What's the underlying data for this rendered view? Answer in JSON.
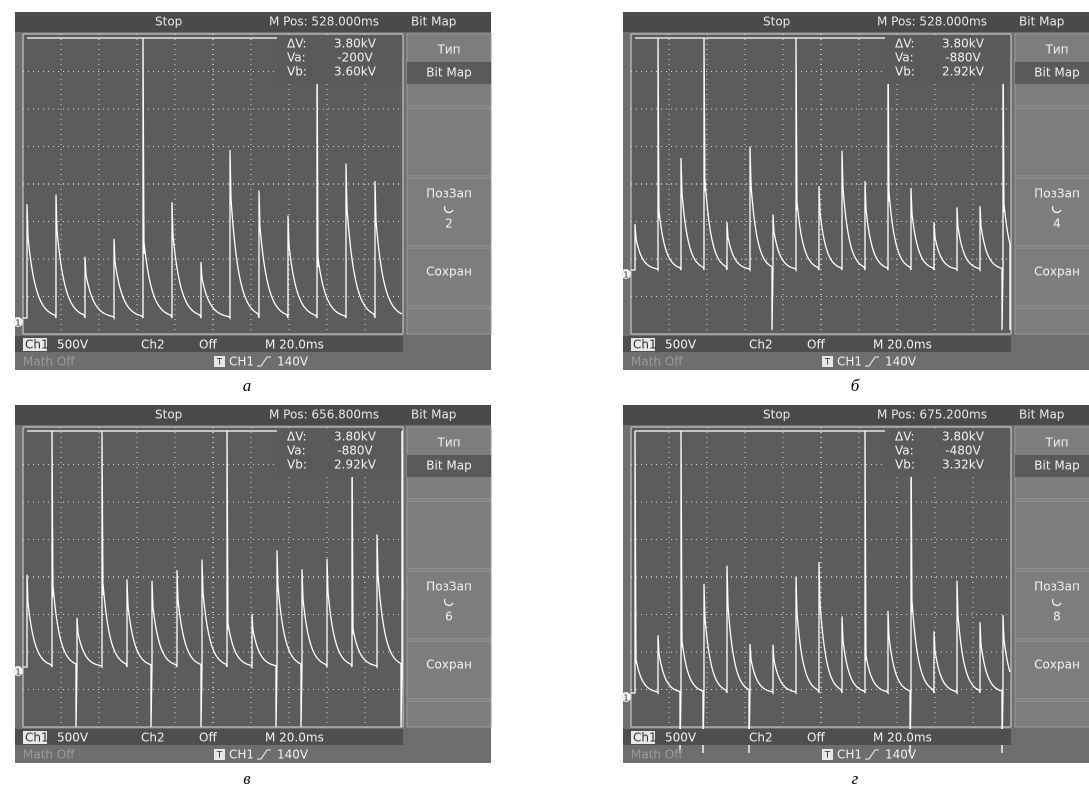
{
  "panels": [
    {
      "status": {
        "mode": "Stop",
        "position": "M Pos: 528.000ms",
        "format": "Bit Map"
      },
      "readout": [
        [
          "ΔV:",
          "3.80kV"
        ],
        [
          "Va:",
          "-200V"
        ],
        [
          "Vb:",
          "3.60kV"
        ]
      ],
      "menu": {
        "type_label": "Тип",
        "type_value": "Bit Map",
        "slot_label": "ПозЗап",
        "slot_value": "2",
        "save": "Сохран"
      },
      "channel_marker": "1",
      "footer": {
        "ch1": "Ch1",
        "ch1_scale": "500V",
        "ch2": "Ch2",
        "ch2_state": "Off",
        "timebase": "M 20.0ms",
        "math": "Math Off",
        "trigger_icon": "T",
        "trigger_source": "CH1",
        "trigger_level": "140V"
      },
      "caption": "а"
    },
    {
      "status": {
        "mode": "Stop",
        "position": "M Pos: 528.000ms",
        "format": "Bit Map"
      },
      "readout": [
        [
          "ΔV:",
          "3.80kV"
        ],
        [
          "Va:",
          "-880V"
        ],
        [
          "Vb:",
          "2.92kV"
        ]
      ],
      "menu": {
        "type_label": "Тип",
        "type_value": "Bit Map",
        "slot_label": "ПозЗап",
        "slot_value": "4",
        "save": "Сохран"
      },
      "channel_marker": "1",
      "footer": {
        "ch1": "Ch1",
        "ch1_scale": "500V",
        "ch2": "Ch2",
        "ch2_state": "Off",
        "timebase": "M 20.0ms",
        "math": "Math Off",
        "trigger_icon": "T",
        "trigger_source": "CH1",
        "trigger_level": "140V"
      },
      "caption": "б"
    },
    {
      "status": {
        "mode": "Stop",
        "position": "M Pos: 656.800ms",
        "format": "Bit Map"
      },
      "readout": [
        [
          "ΔV:",
          "3.80kV"
        ],
        [
          "Va:",
          "-880V"
        ],
        [
          "Vb:",
          "2.92kV"
        ]
      ],
      "menu": {
        "type_label": "Тип",
        "type_value": "Bit Map",
        "slot_label": "ПозЗап",
        "slot_value": "6",
        "save": "Сохран"
      },
      "channel_marker": "1",
      "footer": {
        "ch1": "Ch1",
        "ch1_scale": "500V",
        "ch2": "Ch2",
        "ch2_state": "Off",
        "timebase": "M 20.0ms",
        "math": "Math Off",
        "trigger_icon": "T",
        "trigger_source": "CH1",
        "trigger_level": "140V"
      },
      "caption": "в"
    },
    {
      "status": {
        "mode": "Stop",
        "position": "M Pos: 675.200ms",
        "format": "Bit Map"
      },
      "readout": [
        [
          "ΔV:",
          "3.80kV"
        ],
        [
          "Va:",
          "-480V"
        ],
        [
          "Vb:",
          "3.32kV"
        ]
      ],
      "menu": {
        "type_label": "Тип",
        "type_value": "Bit Map",
        "slot_label": "ПозЗап",
        "slot_value": "8",
        "save": "Сохран"
      },
      "channel_marker": "1",
      "footer": {
        "ch1": "Ch1",
        "ch1_scale": "500V",
        "ch2": "Ch2",
        "ch2_state": "Off",
        "timebase": "M 20.0ms",
        "math": "Math Off",
        "trigger_icon": "T",
        "trigger_source": "CH1",
        "trigger_level": "140V"
      },
      "caption": "г"
    }
  ]
}
